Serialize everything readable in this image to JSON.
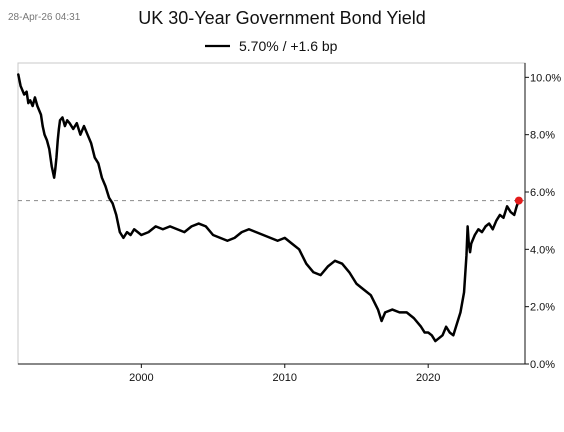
{
  "timestamp": "28-Apr-26 04:31",
  "legend": {
    "label": "5.70% / +1.6 bp"
  },
  "colors": {
    "series": "#000000",
    "latest_marker": "#e31b1b",
    "reference_line": "#8a8a8a",
    "frame": "#c8c8c8"
  },
  "chart_data": {
    "type": "line",
    "title": "UK 30-Year Government Bond Yield",
    "xlabel": "",
    "ylabel": "",
    "xlim": [
      1991.4,
      2026.75
    ],
    "ylim": [
      0,
      10.5
    ],
    "grid": false,
    "legend_position": "top-center",
    "x_ticks": [
      2000,
      2010,
      2020
    ],
    "x_tick_labels": [
      "2000",
      "2010",
      "2020"
    ],
    "y_ticks": [
      0,
      2,
      4,
      6,
      8,
      10
    ],
    "y_tick_labels": [
      "0.0%",
      "2.0%",
      "4.0%",
      "6.0%",
      "8.0%",
      "10.0%"
    ],
    "reference_line": {
      "y": 5.7,
      "style": "dashed"
    },
    "latest_point": {
      "x": 2026.32,
      "y": 5.7
    },
    "series": [
      {
        "name": "5.70% / +1.6 bp",
        "x": [
          1991.42,
          1991.58,
          1991.83,
          1992.0,
          1992.12,
          1992.25,
          1992.42,
          1992.58,
          1992.75,
          1993.0,
          1993.12,
          1993.25,
          1993.42,
          1993.58,
          1993.75,
          1993.92,
          1994.0,
          1994.08,
          1994.17,
          1994.25,
          1994.33,
          1994.5,
          1994.67,
          1994.83,
          1995.0,
          1995.25,
          1995.5,
          1995.75,
          1996.0,
          1996.25,
          1996.5,
          1996.75,
          1997.0,
          1997.25,
          1997.5,
          1997.75,
          1998.0,
          1998.25,
          1998.5,
          1998.75,
          1999.0,
          1999.25,
          1999.5,
          1999.75,
          2000.0,
          2000.5,
          2001.0,
          2001.5,
          2002.0,
          2002.5,
          2003.0,
          2003.5,
          2004.0,
          2004.5,
          2005.0,
          2005.5,
          2006.0,
          2006.5,
          2007.0,
          2007.5,
          2008.0,
          2008.5,
          2009.0,
          2009.5,
          2010.0,
          2010.5,
          2011.0,
          2011.5,
          2012.0,
          2012.5,
          2013.0,
          2013.5,
          2014.0,
          2014.5,
          2015.0,
          2015.5,
          2016.0,
          2016.5,
          2016.75,
          2017.0,
          2017.5,
          2018.0,
          2018.5,
          2019.0,
          2019.5,
          2019.75,
          2020.0,
          2020.25,
          2020.5,
          2020.75,
          2021.0,
          2021.25,
          2021.5,
          2021.75,
          2022.0,
          2022.25,
          2022.5,
          2022.67,
          2022.75,
          2022.83,
          2022.92,
          2023.0,
          2023.25,
          2023.5,
          2023.75,
          2024.0,
          2024.25,
          2024.5,
          2024.75,
          2025.0,
          2025.25,
          2025.5,
          2025.75,
          2026.0,
          2026.17,
          2026.32
        ],
        "y": [
          10.1,
          9.7,
          9.4,
          9.5,
          9.1,
          9.2,
          9.0,
          9.3,
          9.0,
          8.7,
          8.3,
          8.0,
          7.8,
          7.5,
          6.9,
          6.5,
          6.8,
          7.2,
          7.8,
          8.2,
          8.5,
          8.6,
          8.3,
          8.5,
          8.4,
          8.2,
          8.4,
          8.0,
          8.3,
          8.0,
          7.7,
          7.2,
          7.0,
          6.5,
          6.2,
          5.8,
          5.6,
          5.2,
          4.6,
          4.4,
          4.6,
          4.5,
          4.7,
          4.6,
          4.5,
          4.6,
          4.8,
          4.7,
          4.8,
          4.7,
          4.6,
          4.8,
          4.9,
          4.8,
          4.5,
          4.4,
          4.3,
          4.4,
          4.6,
          4.7,
          4.6,
          4.5,
          4.4,
          4.3,
          4.4,
          4.2,
          4.0,
          3.5,
          3.2,
          3.1,
          3.4,
          3.6,
          3.5,
          3.2,
          2.8,
          2.6,
          2.4,
          1.9,
          1.5,
          1.8,
          1.9,
          1.8,
          1.8,
          1.6,
          1.3,
          1.1,
          1.1,
          1.0,
          0.8,
          0.9,
          1.0,
          1.3,
          1.1,
          1.0,
          1.4,
          1.8,
          2.5,
          3.8,
          4.8,
          4.2,
          3.9,
          4.2,
          4.5,
          4.7,
          4.6,
          4.8,
          4.9,
          4.7,
          5.0,
          5.2,
          5.1,
          5.5,
          5.3,
          5.2,
          5.5,
          5.7
        ]
      }
    ]
  }
}
